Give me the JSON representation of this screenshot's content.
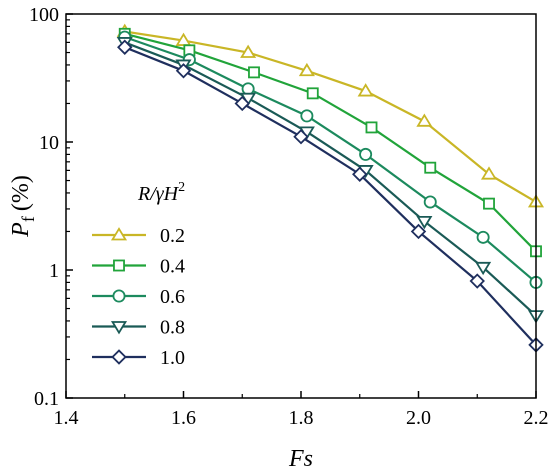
{
  "chart_data": {
    "type": "line",
    "xlabel": "Fs",
    "ylabel": {
      "main": "P",
      "sub": "f",
      "unit": "(%)"
    },
    "xlim": [
      1.4,
      2.2
    ],
    "ylim": [
      0.1,
      100
    ],
    "yscale": "log",
    "grid": false,
    "xticks": [
      "1.4",
      "1.6",
      "1.8",
      "2.0",
      "2.2"
    ],
    "yticks": [
      "0.1",
      "1",
      "10",
      "100"
    ],
    "legend": {
      "title_parts": [
        "R/γH",
        "2"
      ],
      "placement": "left"
    },
    "series": [
      {
        "name": "0.2",
        "marker": "triangle-up",
        "color": "#c9b626",
        "x": [
          1.5,
          1.6,
          1.71,
          1.81,
          1.91,
          2.01,
          2.12,
          2.2
        ],
        "y": [
          73,
          62,
          50,
          36,
          25,
          14.5,
          5.6,
          3.4
        ]
      },
      {
        "name": "0.4",
        "marker": "square",
        "color": "#21a43a",
        "x": [
          1.5,
          1.61,
          1.72,
          1.82,
          1.92,
          2.02,
          2.12,
          2.2
        ],
        "y": [
          70,
          52,
          35,
          24,
          13,
          6.3,
          3.3,
          1.4
        ]
      },
      {
        "name": "0.6",
        "marker": "circle",
        "color": "#1c8a5e",
        "x": [
          1.5,
          1.61,
          1.71,
          1.81,
          1.91,
          2.02,
          2.11,
          2.2
        ],
        "y": [
          66,
          44,
          26,
          16,
          8,
          3.4,
          1.8,
          0.8
        ]
      },
      {
        "name": "0.8",
        "marker": "triangle-down",
        "color": "#1a5a56",
        "x": [
          1.5,
          1.6,
          1.71,
          1.81,
          1.91,
          2.01,
          2.11,
          2.2
        ],
        "y": [
          60,
          40,
          22,
          12,
          6,
          2.4,
          1.05,
          0.44
        ]
      },
      {
        "name": "1.0",
        "marker": "diamond",
        "color": "#1f2f5e",
        "x": [
          1.5,
          1.6,
          1.7,
          1.8,
          1.9,
          2.0,
          2.1,
          2.2
        ],
        "y": [
          55,
          36,
          20,
          11,
          5.6,
          2.0,
          0.82,
          0.26
        ]
      }
    ]
  }
}
